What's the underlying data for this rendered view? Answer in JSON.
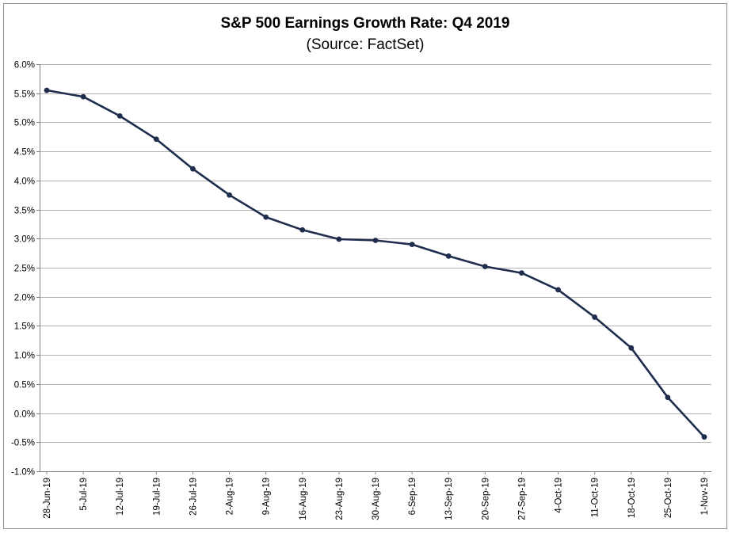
{
  "chart_data": {
    "type": "line",
    "title": "S&P 500 Earnings Growth Rate: Q4 2019",
    "subtitle": "(Source: FactSet)",
    "xlabel": "",
    "ylabel": "",
    "ylim": [
      -1.0,
      6.0
    ],
    "y_tick_step": 0.5,
    "y_unit": "%",
    "grid": true,
    "legend": "none",
    "line_color": "#1f2d4d",
    "categories": [
      "28-Jun-19",
      "5-Jul-19",
      "12-Jul-19",
      "19-Jul-19",
      "26-Jul-19",
      "2-Aug-19",
      "9-Aug-19",
      "16-Aug-19",
      "23-Aug-19",
      "30-Aug-19",
      "6-Sep-19",
      "13-Sep-19",
      "20-Sep-19",
      "27-Sep-19",
      "4-Oct-19",
      "11-Oct-19",
      "18-Oct-19",
      "25-Oct-19",
      "1-Nov-19"
    ],
    "values": [
      5.55,
      5.44,
      5.11,
      4.71,
      4.2,
      3.75,
      3.37,
      3.15,
      2.99,
      2.97,
      2.9,
      2.7,
      2.52,
      2.41,
      2.12,
      1.65,
      1.12,
      0.27,
      -0.41
    ]
  }
}
